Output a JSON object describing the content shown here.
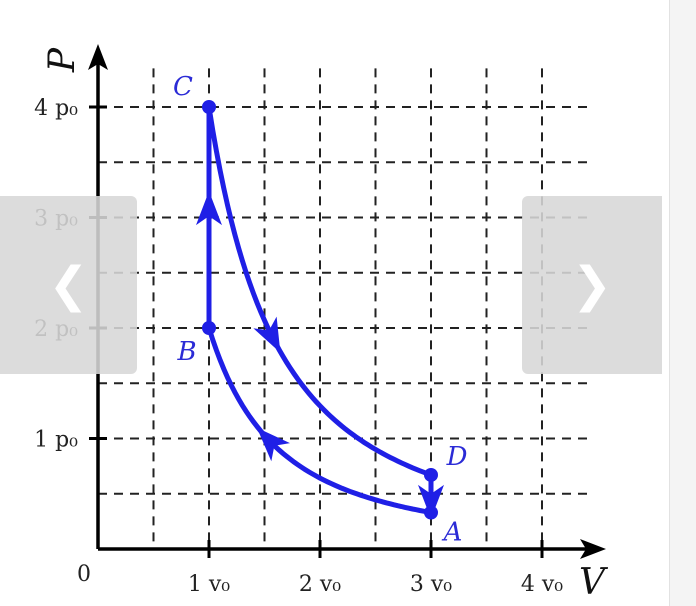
{
  "diagram": {
    "type": "pv-cycle",
    "axes": {
      "x_label": "V",
      "y_label": "P",
      "origin_label": "0",
      "x_ticks": [
        {
          "value": 1,
          "label": "1 v₀"
        },
        {
          "value": 2,
          "label": "2 v₀"
        },
        {
          "value": 3,
          "label": "3 v₀"
        },
        {
          "value": 4,
          "label": "4 v₀"
        }
      ],
      "y_ticks": [
        {
          "value": 1,
          "label": "1 p₀"
        },
        {
          "value": 2,
          "label": "2 p₀"
        },
        {
          "value": 3,
          "label": "3 p₀"
        },
        {
          "value": 4,
          "label": "4 p₀"
        }
      ],
      "grid": "dashed",
      "grid_step": 0.5
    },
    "points": [
      {
        "name": "A",
        "V": 3,
        "P": 0.33
      },
      {
        "name": "B",
        "V": 1,
        "P": 2
      },
      {
        "name": "C",
        "V": 1,
        "P": 4
      },
      {
        "name": "D",
        "V": 3,
        "P": 0.67
      }
    ],
    "paths": [
      {
        "from": "A",
        "to": "B",
        "shape": "curve",
        "arrow": "mid"
      },
      {
        "from": "B",
        "to": "C",
        "shape": "line",
        "arrow": "mid"
      },
      {
        "from": "C",
        "to": "D",
        "shape": "curve",
        "arrow": "mid"
      },
      {
        "from": "D",
        "to": "A",
        "shape": "line",
        "arrow": "end"
      }
    ],
    "colors": {
      "cycle": "#1f1fe6",
      "labels": "#2b2bd6",
      "grid": "#222222"
    }
  },
  "nav": {
    "prev_glyph": "❮",
    "next_glyph": "❯"
  }
}
